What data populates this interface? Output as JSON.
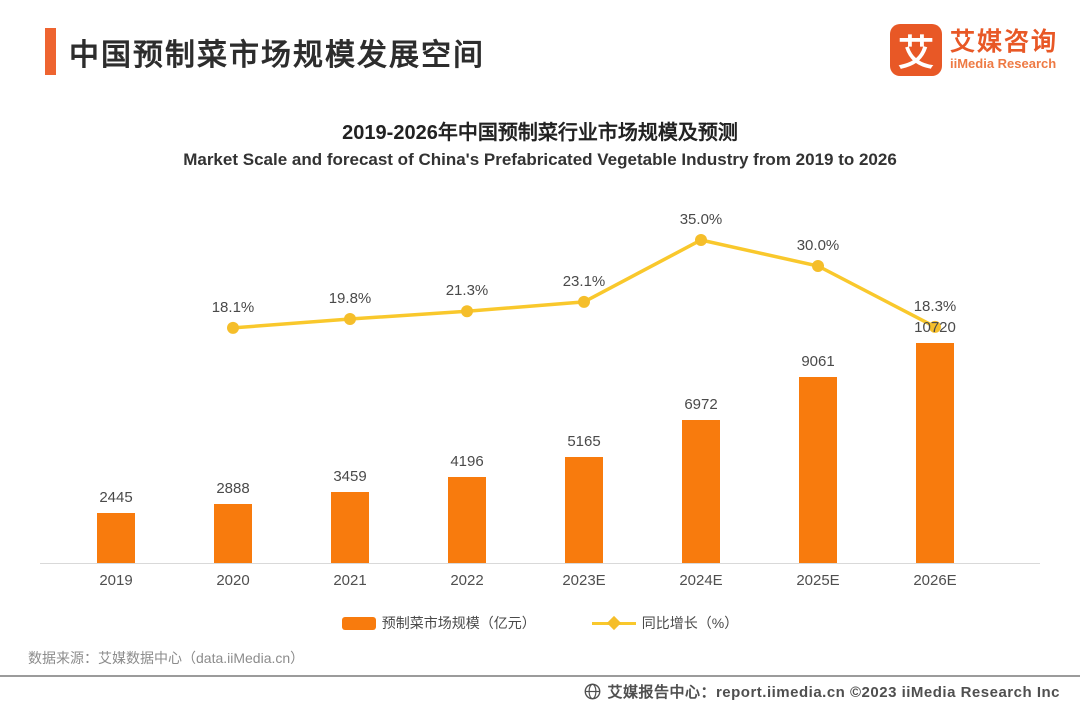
{
  "header": {
    "title": "中国预制菜市场规模发展空间",
    "accent_color": "#EE6430",
    "logo": {
      "mark": "艾",
      "name_cn": "艾媒咨询",
      "name_en": "iiMedia Research",
      "color": "#E85826"
    }
  },
  "chart": {
    "legend": {
      "bar_label": "预制菜市场规模（亿元）",
      "line_label": "同比增长（%）"
    }
  },
  "chart_data": {
    "type": "bar",
    "title": "2019-2026年中国预制菜行业市场规模及预测",
    "subtitle": "Market Scale and forecast of China's Prefabricated Vegetable Industry from 2019 to 2026",
    "categories": [
      "2019",
      "2020",
      "2021",
      "2022",
      "2023E",
      "2024E",
      "2025E",
      "2026E"
    ],
    "series": [
      {
        "name": "预制菜市场规模（亿元）",
        "type": "bar",
        "color": "#F87B0D",
        "values": [
          2445,
          2888,
          3459,
          4196,
          5165,
          6972,
          9061,
          10720
        ]
      },
      {
        "name": "同比增长（%）",
        "type": "line",
        "color": "#F9C82C",
        "marker_color": "#F5BE2A",
        "values": [
          null,
          18.1,
          19.8,
          21.3,
          23.1,
          35.0,
          30.0,
          18.3
        ],
        "labels": [
          "",
          "18.1%",
          "19.8%",
          "21.3%",
          "23.1%",
          "35.0%",
          "30.0%",
          "18.3%"
        ]
      }
    ],
    "value_labels_shown": true,
    "grid": false,
    "legend_position": "bottom",
    "y_axis_shown": false
  },
  "footer": {
    "source": "数据来源：艾媒数据中心（data.iiMedia.cn）",
    "report_center": "艾媒报告中心：report.iimedia.cn  ©2023  iiMedia Research Inc"
  }
}
